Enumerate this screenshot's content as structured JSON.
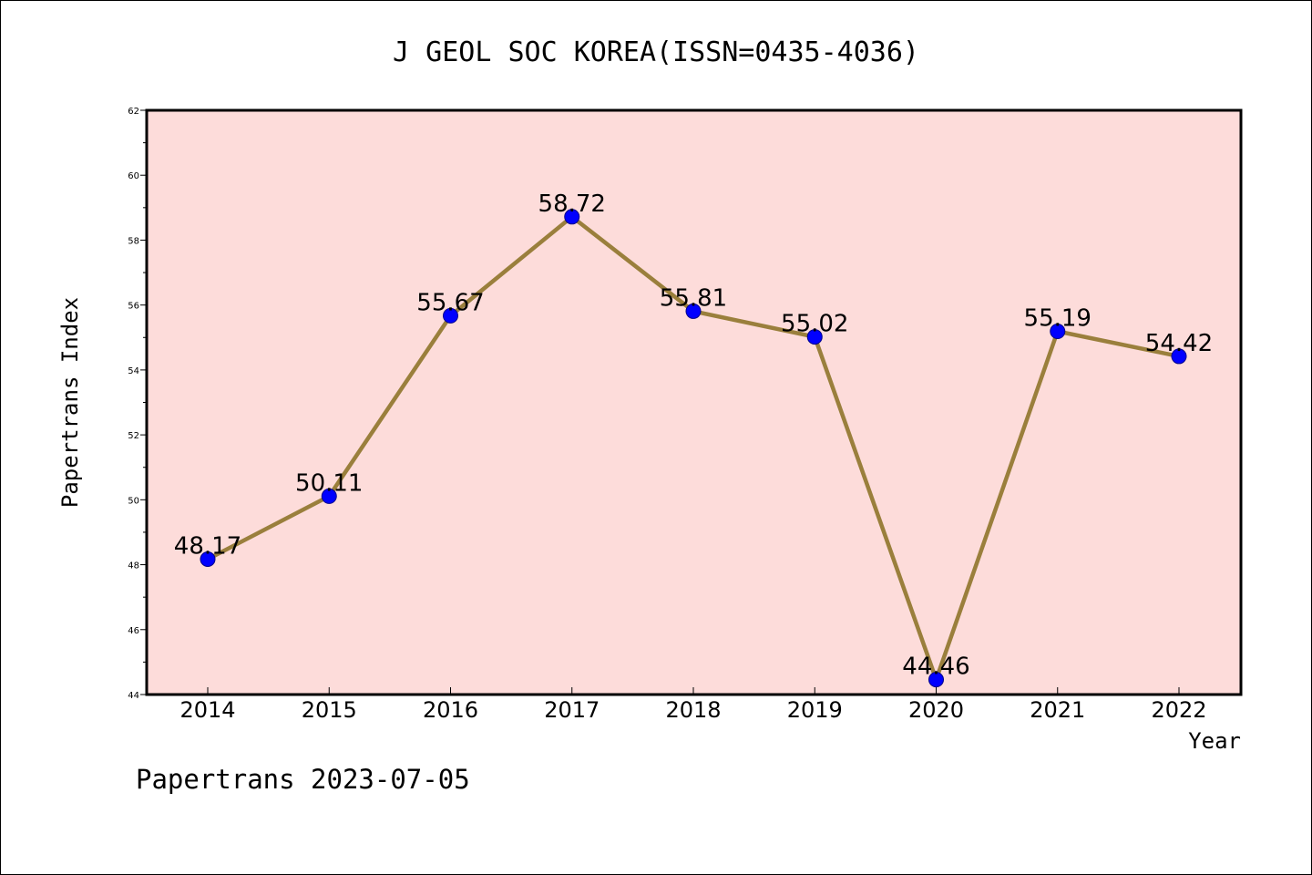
{
  "chart_data": {
    "type": "line",
    "title": "J GEOL SOC KOREA(ISSN=0435-4036)",
    "xlabel": "Year",
    "ylabel": "Papertrans Index",
    "categories": [
      "2014",
      "2015",
      "2016",
      "2017",
      "2018",
      "2019",
      "2020",
      "2021",
      "2022"
    ],
    "values": [
      48.17,
      50.11,
      55.67,
      58.72,
      55.81,
      55.02,
      44.46,
      55.19,
      54.42
    ],
    "data_labels": [
      "48.17",
      "50.11",
      "55.67",
      "58.72",
      "55.81",
      "55.02",
      "44.46",
      "55.19",
      "54.42"
    ],
    "ylim": [
      44,
      62
    ],
    "yticks": [
      "44",
      "46",
      "48",
      "50",
      "52",
      "54",
      "56",
      "58",
      "60",
      "62"
    ],
    "grid": false,
    "legend": "none",
    "plot_background": "#fddcda",
    "line_color": "#9a7f3c",
    "marker_color": "#0000ff"
  },
  "footer": "Papertrans 2023-07-05"
}
